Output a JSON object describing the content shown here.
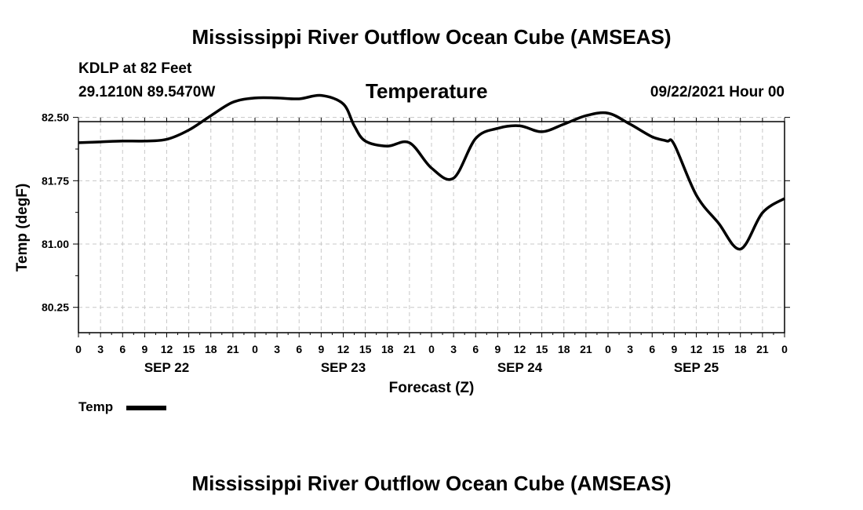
{
  "header": {
    "title": "Mississippi River Outflow Ocean Cube (AMSEAS)",
    "station": "KDLP at 82 Feet",
    "coords": "29.1210N  89.5470W",
    "variable": "Temperature",
    "run": "09/22/2021 Hour 00"
  },
  "footer": {
    "title": "Mississippi River Outflow Ocean Cube (AMSEAS)"
  },
  "legend": {
    "label": "Temp",
    "color": "#000000"
  },
  "chart_data": {
    "type": "line",
    "title": "Temperature",
    "xlabel": "Forecast (Z)",
    "ylabel": "Temp (degF)",
    "xlim": [
      0,
      96
    ],
    "ylim": [
      79.95,
      82.45
    ],
    "ylim_note": "axis ticks at 80.25, 81.00, 81.75, 82.50",
    "y_ticks": [
      80.25,
      81.0,
      81.75,
      82.5
    ],
    "y_tick_labels": [
      "80.25",
      "81.00",
      "81.75",
      "82.50"
    ],
    "x_ticks": [
      0,
      3,
      6,
      9,
      12,
      15,
      18,
      21,
      24,
      27,
      30,
      33,
      36,
      39,
      42,
      45,
      48,
      51,
      54,
      57,
      60,
      63,
      66,
      69,
      72,
      75,
      78,
      81,
      84,
      87,
      90,
      93,
      96
    ],
    "x_tick_labels": [
      "0",
      "3",
      "6",
      "9",
      "12",
      "15",
      "18",
      "21",
      "0",
      "3",
      "6",
      "9",
      "12",
      "15",
      "18",
      "21",
      "0",
      "3",
      "6",
      "9",
      "12",
      "15",
      "18",
      "21",
      "0",
      "3",
      "6",
      "9",
      "12",
      "15",
      "18",
      "21",
      "0"
    ],
    "day_labels": [
      {
        "x": 12,
        "label": "SEP 22"
      },
      {
        "x": 36,
        "label": "SEP 23"
      },
      {
        "x": 60,
        "label": "SEP 24"
      },
      {
        "x": 84,
        "label": "SEP 25"
      }
    ],
    "grid": true,
    "series": [
      {
        "name": "Temp",
        "x": [
          0,
          3,
          6,
          9,
          12,
          15,
          18,
          21,
          24,
          27,
          30,
          33,
          36,
          37.5,
          39,
          42,
          45,
          48,
          51,
          54,
          57,
          60,
          63,
          66,
          69,
          72,
          75,
          78,
          80,
          81,
          84,
          87,
          90,
          93,
          96
        ],
        "y": [
          82.2,
          82.21,
          82.22,
          82.22,
          82.24,
          82.35,
          82.52,
          82.68,
          82.73,
          82.73,
          82.72,
          82.76,
          82.66,
          82.4,
          82.22,
          82.16,
          82.2,
          81.9,
          81.78,
          82.25,
          82.37,
          82.4,
          82.33,
          82.42,
          82.52,
          82.55,
          82.42,
          82.27,
          82.22,
          82.18,
          81.58,
          81.25,
          80.94,
          81.37,
          81.54
        ]
      }
    ]
  }
}
